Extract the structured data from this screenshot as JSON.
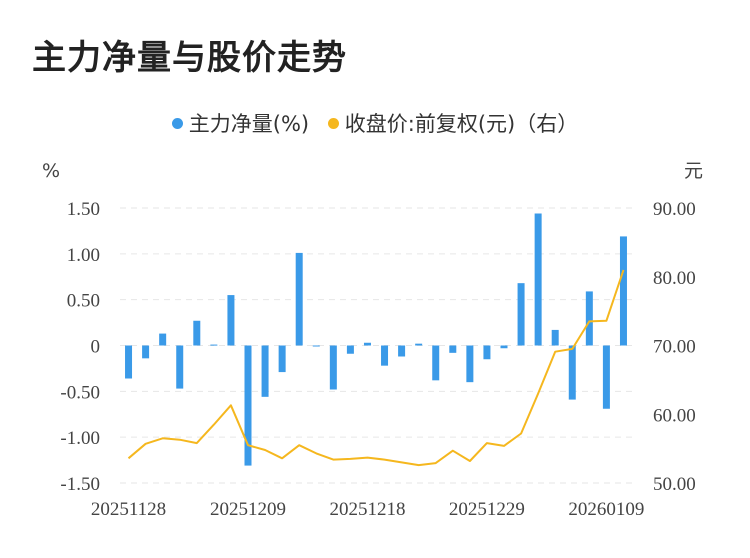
{
  "chart_data": {
    "type": "bar+line",
    "title": "主力净量与股价走势",
    "legend": [
      {
        "name": "主力净量(%)",
        "color": "#3a9ae8"
      },
      {
        "name": "收盘价:前复权(元)（右）",
        "color": "#f5b71e"
      }
    ],
    "left_unit": "%",
    "right_unit": "元",
    "left_ticks": [
      "1.50",
      "1.00",
      "0.50",
      "0",
      "-0.50",
      "-1.00",
      "-1.50"
    ],
    "left_ylim": [
      -1.5,
      1.5
    ],
    "right_ticks": [
      "90.00",
      "80.00",
      "70.00",
      "60.00",
      "50.00"
    ],
    "right_ylim": [
      50,
      90
    ],
    "x_tick_labels": [
      {
        "label": "20251128",
        "index": 0
      },
      {
        "label": "20251209",
        "index": 7
      },
      {
        "label": "20251218",
        "index": 14
      },
      {
        "label": "20251229",
        "index": 21
      },
      {
        "label": "20260109",
        "index": 28
      }
    ],
    "bar_series": {
      "name": "主力净量(%)",
      "values": [
        -0.36,
        -0.14,
        0.13,
        -0.47,
        0.27,
        0.01,
        0.55,
        -1.31,
        -0.56,
        -0.29,
        1.01,
        0.0,
        -0.48,
        -0.09,
        0.03,
        -0.22,
        -0.12,
        0.02,
        -0.38,
        -0.08,
        -0.4,
        -0.15,
        -0.03,
        0.68,
        1.44,
        0.17,
        -0.59,
        0.59,
        -0.69,
        1.19
      ]
    },
    "line_series": {
      "name": "收盘价:前复权(元)（右）",
      "values": [
        53.6,
        55.7,
        56.5,
        56.3,
        55.8,
        58.5,
        61.3,
        55.5,
        54.8,
        53.6,
        55.5,
        54.3,
        53.4,
        53.5,
        53.7,
        53.4,
        53.0,
        52.6,
        52.9,
        54.7,
        53.2,
        55.8,
        55.4,
        57.2,
        63.0,
        69.1,
        69.5,
        73.5,
        73.6,
        81.0
      ]
    }
  }
}
